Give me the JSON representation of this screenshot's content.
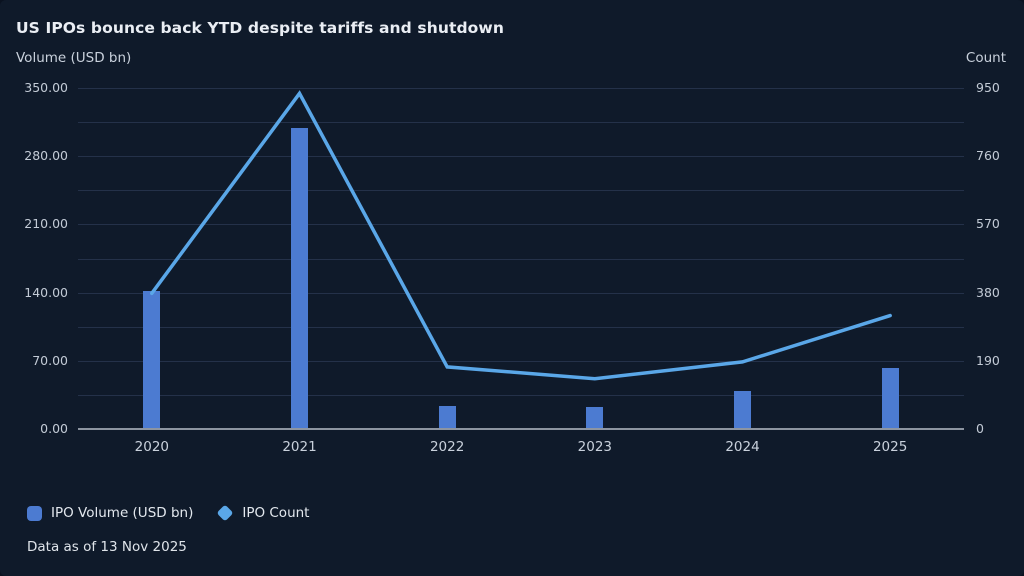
{
  "header": {
    "title": "US IPOs bounce back YTD despite tariffs and shutdown"
  },
  "axes": {
    "left_label": "Volume (USD bn)",
    "right_label": "Count"
  },
  "legend": {
    "items": [
      {
        "label": "IPO Volume (USD bn)",
        "swatch": "square-icon",
        "color": "#4c7bd1"
      },
      {
        "label": "IPO Count",
        "swatch": "diamond-icon",
        "color": "#5aa7e8"
      }
    ]
  },
  "footer": {
    "note": "Data as of 13 Nov 2025"
  },
  "colors": {
    "background": "#0f1a2a",
    "title_text": "#eaeef4",
    "axis_text": "#c7cfda",
    "gridline": "#243149",
    "baseline": "#8d95a1",
    "bar": "#4c7bd1",
    "line": "#5aa7e8"
  },
  "chart_data": {
    "type": "bar",
    "subtype": "combo-bar-line-dual-axis",
    "title": "US IPOs bounce back YTD despite tariffs and shutdown",
    "categories": [
      "2020",
      "2021",
      "2022",
      "2023",
      "2024",
      "2025"
    ],
    "series": [
      {
        "name": "IPO Volume (USD bn)",
        "type": "bar",
        "axis": "left",
        "color": "#4c7bd1",
        "values": [
          142,
          309,
          24,
          23,
          39,
          63
        ]
      },
      {
        "name": "IPO Count",
        "type": "line",
        "axis": "right",
        "color": "#5aa7e8",
        "values": [
          378,
          935,
          173,
          140,
          187,
          316
        ]
      }
    ],
    "left_axis": {
      "label": "Volume (USD bn)",
      "min": 0,
      "max": 350,
      "major_tick_values": [
        0,
        70,
        140,
        210,
        280,
        350
      ],
      "major_tick_labels": [
        "0.00",
        "70.00",
        "140.00",
        "210.00",
        "280.00",
        "350.00"
      ],
      "minor_step": 35,
      "tick_format": "2-decimals"
    },
    "right_axis": {
      "label": "Count",
      "min": 0,
      "max": 950,
      "tick_values": [
        0,
        190,
        380,
        570,
        760,
        950
      ],
      "tick_labels": [
        "0",
        "190",
        "380",
        "570",
        "760",
        "950"
      ]
    },
    "grid": "horizontal-only",
    "legend_position": "bottom-left",
    "annotation": "Data as of 13 Nov 2025"
  }
}
